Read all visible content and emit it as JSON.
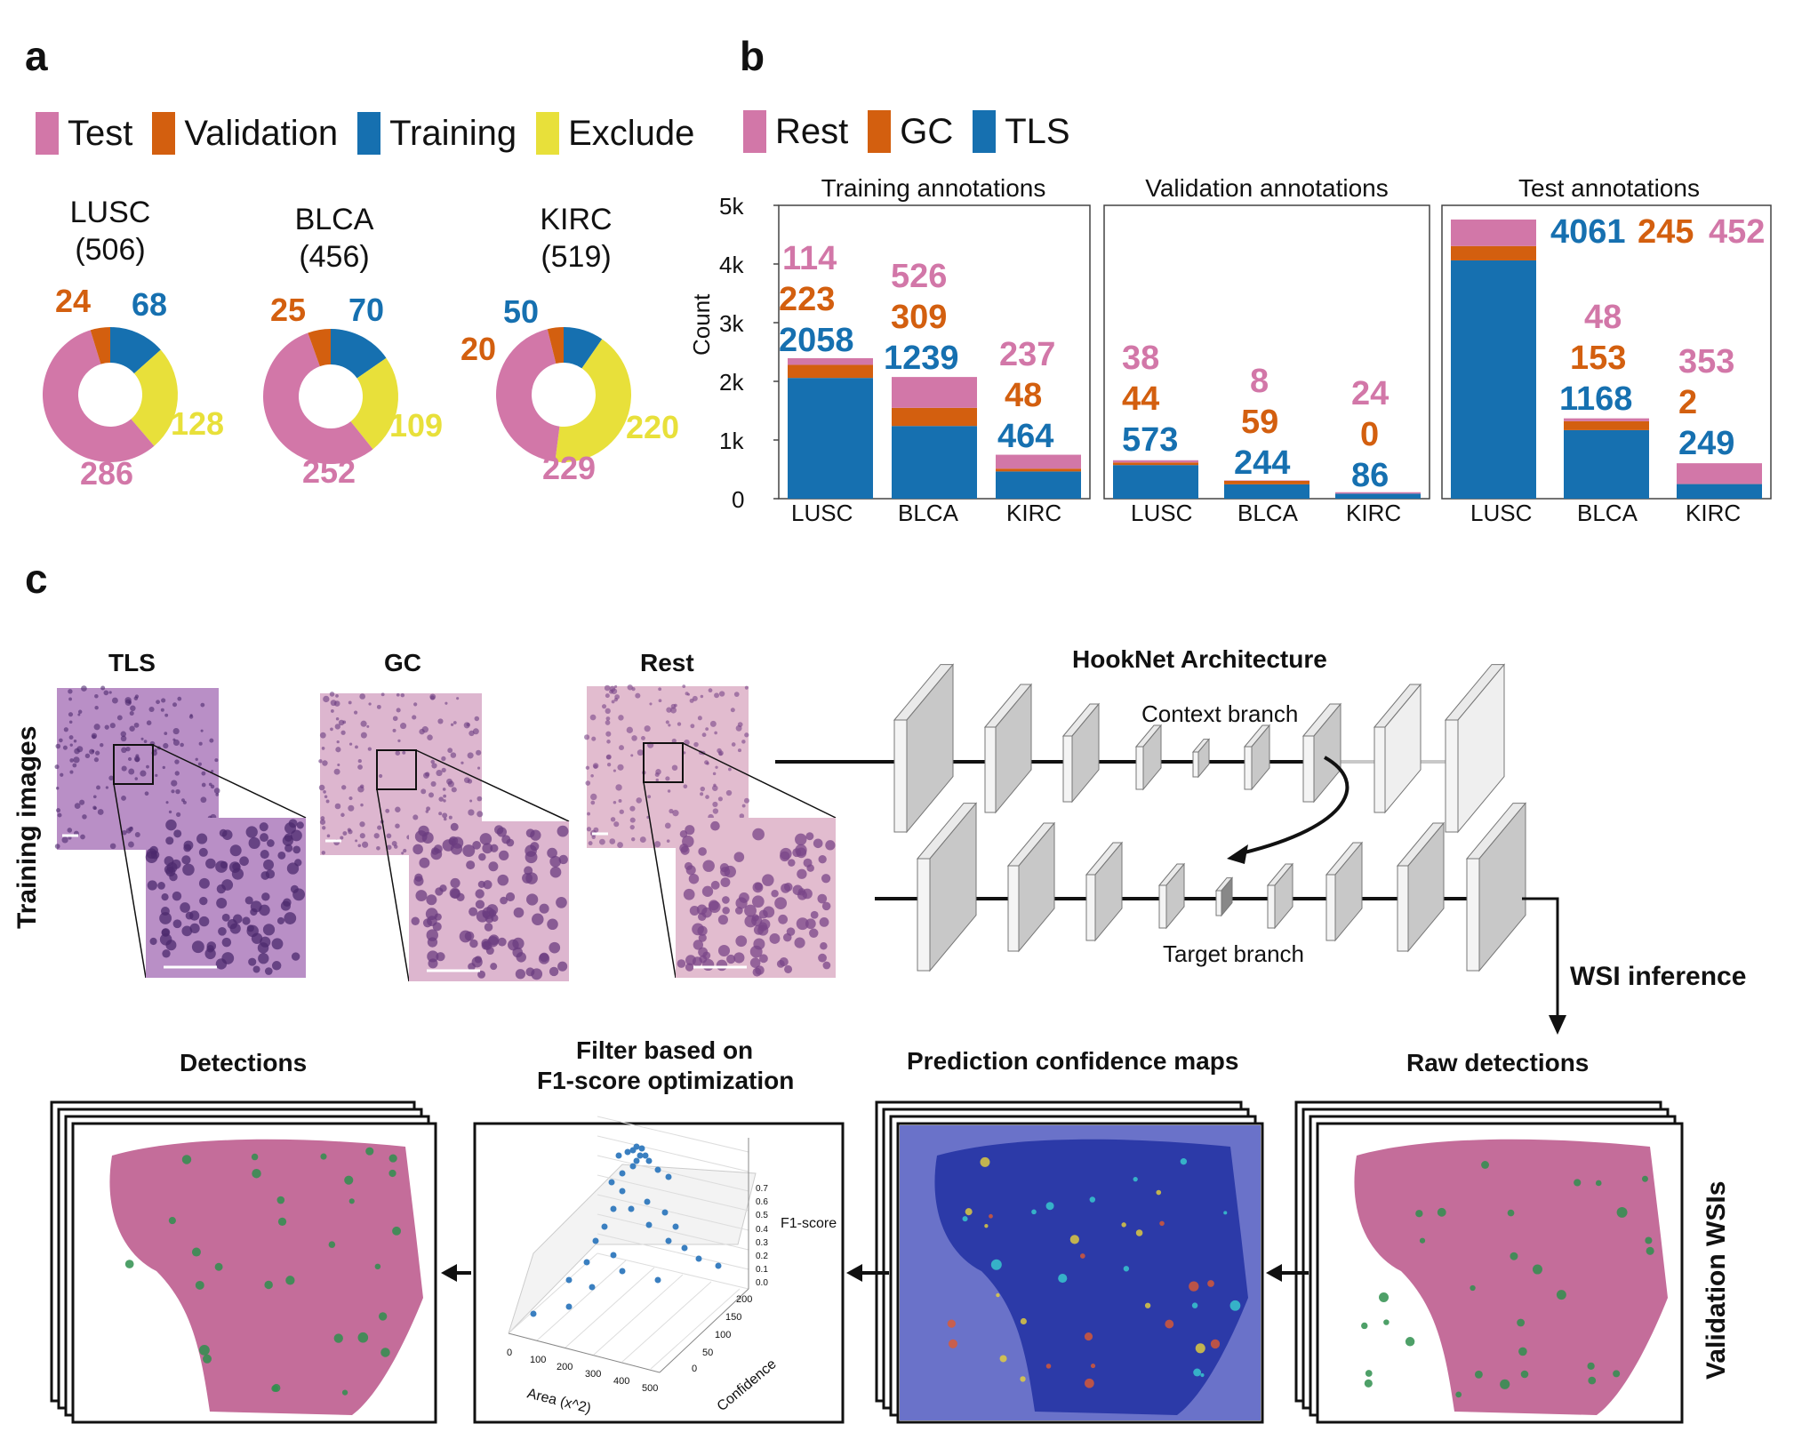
{
  "panels": {
    "a": "a",
    "b": "b",
    "c": "c"
  },
  "panel_a": {
    "legend": [
      {
        "label": "Test",
        "color": "#d277a8"
      },
      {
        "label": "Validation",
        "color": "#d35f0f"
      },
      {
        "label": "Training",
        "color": "#1670b0"
      },
      {
        "label": "Exclude",
        "color": "#e8e03a"
      }
    ],
    "donuts": [
      {
        "name": "LUSC",
        "total": "(506)",
        "test": "286",
        "validation": "24",
        "training": "68",
        "exclude": "128"
      },
      {
        "name": "BLCA",
        "total": "(456)",
        "test": "252",
        "validation": "25",
        "training": "70",
        "exclude": "109"
      },
      {
        "name": "KIRC",
        "total": "(519)",
        "test": "229",
        "validation": "20",
        "training": "50",
        "exclude": "220"
      }
    ]
  },
  "panel_b": {
    "legend": [
      {
        "label": "Rest",
        "color": "#d277a8"
      },
      {
        "label": "GC",
        "color": "#d35f0f"
      },
      {
        "label": "TLS",
        "color": "#1670b0"
      }
    ],
    "ylabel": "Count",
    "yticks": [
      "0",
      "1k",
      "2k",
      "3k",
      "4k",
      "5k"
    ],
    "subplots": [
      {
        "title": "Training annotations",
        "cats": [
          "LUSC",
          "BLCA",
          "KIRC"
        ]
      },
      {
        "title": "Validation annotations",
        "cats": [
          "LUSC",
          "BLCA",
          "KIRC"
        ]
      },
      {
        "title": "Test annotations",
        "cats": [
          "LUSC",
          "BLCA",
          "KIRC"
        ]
      }
    ]
  },
  "chart_data": {
    "type": "bar",
    "stacked": true,
    "ylabel": "Count",
    "ylim": [
      0,
      5000
    ],
    "subplots": [
      {
        "title": "Training annotations",
        "categories": [
          "LUSC",
          "BLCA",
          "KIRC"
        ],
        "series": [
          {
            "name": "TLS",
            "values": [
              2058,
              1239,
              464
            ]
          },
          {
            "name": "GC",
            "values": [
              223,
              309,
              48
            ]
          },
          {
            "name": "Rest",
            "values": [
              114,
              526,
              237
            ]
          }
        ]
      },
      {
        "title": "Validation annotations",
        "categories": [
          "LUSC",
          "BLCA",
          "KIRC"
        ],
        "series": [
          {
            "name": "TLS",
            "values": [
              573,
              244,
              86
            ]
          },
          {
            "name": "GC",
            "values": [
              44,
              59,
              0
            ]
          },
          {
            "name": "Rest",
            "values": [
              38,
              8,
              24
            ]
          }
        ]
      },
      {
        "title": "Test annotations",
        "categories": [
          "LUSC",
          "BLCA",
          "KIRC"
        ],
        "series": [
          {
            "name": "TLS",
            "values": [
              4061,
              1168,
              249
            ]
          },
          {
            "name": "GC",
            "values": [
              245,
              153,
              2
            ]
          },
          {
            "name": "Rest",
            "values": [
              452,
              48,
              353
            ]
          }
        ]
      }
    ]
  },
  "panel_c": {
    "training_images": "Training images",
    "tiles": [
      "TLS",
      "GC",
      "Rest"
    ],
    "hooknet": "HookNet Architecture",
    "context_branch": "Context branch",
    "target_branch": "Target branch",
    "wsi_inference": "WSI inference",
    "validation_wsis": "Validation WSIs",
    "detections": "Detections",
    "filter_line1": "Filter based on",
    "filter_line2": "F1-score optimization",
    "confidence_maps": "Prediction confidence maps",
    "raw_detections": "Raw detections",
    "scatter": {
      "z_label": "F1-score",
      "x_label": "Area (x^2)",
      "y_label": "Confidence",
      "z_ticks": [
        "0.7",
        "0.6",
        "0.5",
        "0.4",
        "0.3",
        "0.2",
        "0.1",
        "0.0"
      ],
      "x_ticks": [
        "0",
        "100",
        "200",
        "300",
        "400",
        "500"
      ],
      "y_ticks": [
        "0",
        "50",
        "100",
        "150",
        "200"
      ]
    }
  },
  "colors": {
    "rest": "#d277a8",
    "gc": "#d35f0f",
    "tls": "#1670b0",
    "exclude": "#e8e03a"
  }
}
